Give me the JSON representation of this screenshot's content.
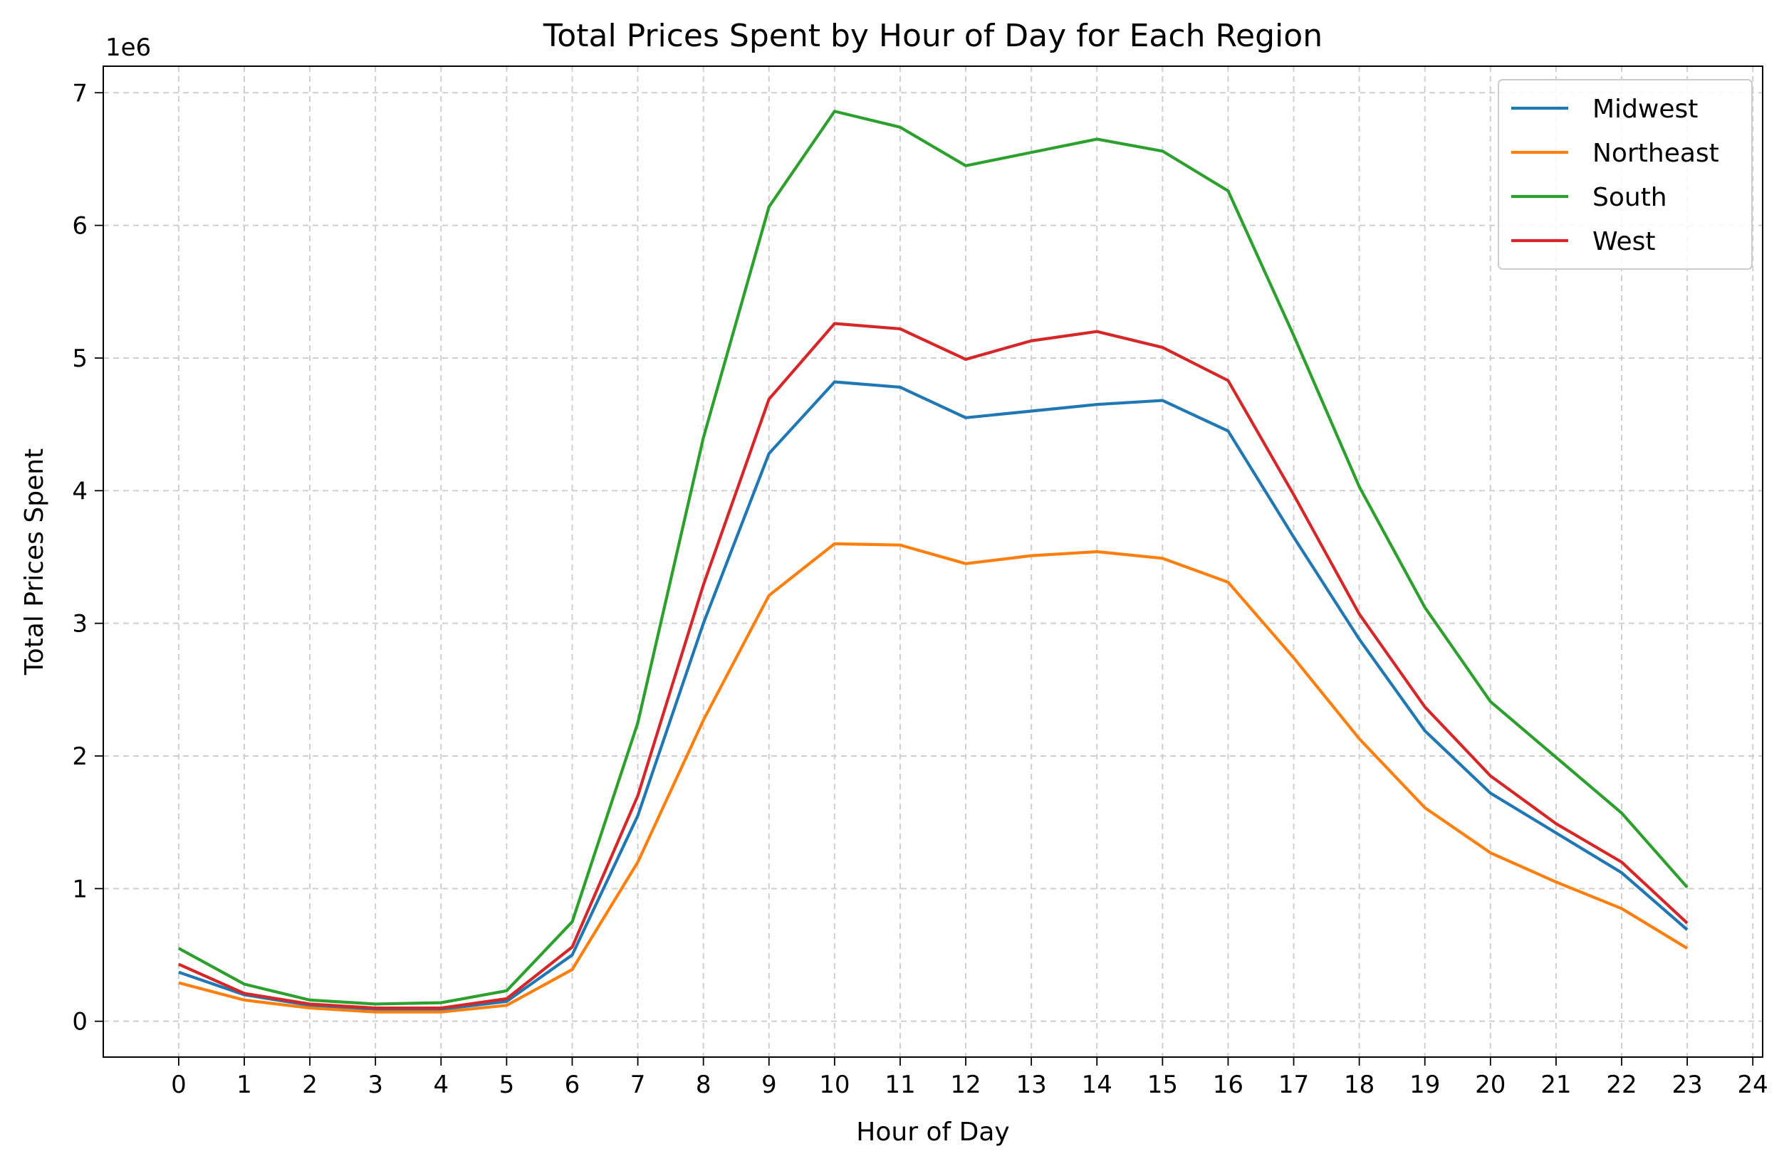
{
  "chart_data": {
    "type": "line",
    "title": "Total Prices Spent by Hour of Day for Each Region",
    "xlabel": "Hour of Day",
    "ylabel": "Total Prices Spent",
    "y_offset_label": "1e6",
    "x": [
      0,
      1,
      2,
      3,
      4,
      5,
      6,
      7,
      8,
      9,
      10,
      11,
      12,
      13,
      14,
      15,
      16,
      17,
      18,
      19,
      20,
      21,
      22,
      23
    ],
    "xticks": [
      "0",
      "1",
      "2",
      "3",
      "4",
      "5",
      "6",
      "7",
      "8",
      "9",
      "10",
      "11",
      "12",
      "13",
      "14",
      "15",
      "16",
      "17",
      "18",
      "19",
      "20",
      "21",
      "22",
      "23",
      "24"
    ],
    "yticks": [
      "0",
      "1",
      "2",
      "3",
      "4",
      "5",
      "6",
      "7"
    ],
    "xlim": [
      -1.15,
      24.15
    ],
    "ylim": [
      -0.27,
      7.2
    ],
    "grid": true,
    "legend_position": "top-right",
    "series": [
      {
        "name": "Midwest",
        "color": "#1f77b4",
        "values": [
          0.37,
          0.2,
          0.12,
          0.09,
          0.09,
          0.15,
          0.5,
          1.55,
          3.0,
          4.28,
          4.82,
          4.78,
          4.55,
          4.6,
          4.65,
          4.68,
          4.45,
          3.65,
          2.88,
          2.19,
          1.72,
          1.42,
          1.12,
          0.69
        ]
      },
      {
        "name": "Northeast",
        "color": "#ff7f0e",
        "values": [
          0.29,
          0.16,
          0.1,
          0.07,
          0.07,
          0.12,
          0.39,
          1.2,
          2.27,
          3.21,
          3.6,
          3.59,
          3.45,
          3.51,
          3.54,
          3.49,
          3.31,
          2.74,
          2.13,
          1.61,
          1.27,
          1.05,
          0.85,
          0.55
        ]
      },
      {
        "name": "South",
        "color": "#2ca02c",
        "values": [
          0.55,
          0.28,
          0.16,
          0.13,
          0.14,
          0.23,
          0.75,
          2.25,
          4.4,
          6.14,
          6.86,
          6.74,
          6.45,
          6.55,
          6.65,
          6.56,
          6.26,
          5.17,
          4.03,
          3.12,
          2.41,
          1.99,
          1.57,
          1.01
        ]
      },
      {
        "name": "West",
        "color": "#d62728",
        "values": [
          0.43,
          0.21,
          0.13,
          0.1,
          0.1,
          0.17,
          0.56,
          1.7,
          3.29,
          4.69,
          5.26,
          5.22,
          4.99,
          5.13,
          5.2,
          5.08,
          4.83,
          3.97,
          3.07,
          2.37,
          1.85,
          1.49,
          1.2,
          0.74
        ]
      }
    ]
  }
}
